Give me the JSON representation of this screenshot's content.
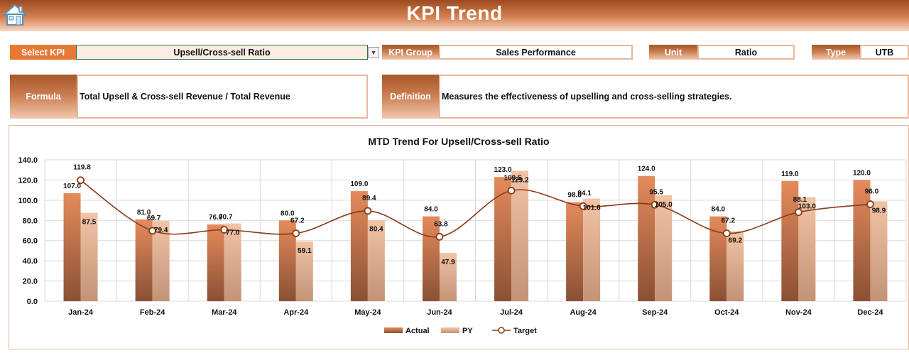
{
  "header": {
    "title": "KPI Trend",
    "home_icon": "home-icon"
  },
  "filters": {
    "select_kpi_label": "Select KPI",
    "select_kpi_value": "Upsell/Cross-sell Ratio",
    "kpi_group_label": "KPI Group",
    "kpi_group_value": "Sales Performance",
    "unit_label": "Unit",
    "unit_value": "Ratio",
    "type_label": "Type",
    "type_value": "UTB"
  },
  "info": {
    "formula_label": "Formula",
    "formula_value": "Total Upsell & Cross-sell Revenue / Total Revenue",
    "definition_label": "Definition",
    "definition_value": "Measures the effectiveness of upselling and cross-selling strategies."
  },
  "colors": {
    "actual_top": "#e48b5c",
    "actual_bottom": "#8a5035",
    "py_top": "#f3c3a5",
    "py_bottom": "#c39377",
    "target_line": "#8b3a14",
    "accent": "#e87934"
  },
  "chart_data": {
    "type": "bar",
    "title": "MTD Trend For Upsell/Cross-sell Ratio",
    "categories": [
      "Jan-24",
      "Feb-24",
      "Mar-24",
      "Apr-24",
      "May-24",
      "Jun-24",
      "Jul-24",
      "Aug-24",
      "Sep-24",
      "Oct-24",
      "Nov-24",
      "Dec-24"
    ],
    "series": [
      {
        "name": "Actual",
        "type": "bar",
        "values": [
          107.0,
          81.0,
          76.0,
          80.0,
          109.0,
          84.0,
          123.0,
          98.0,
          124.0,
          84.0,
          119.0,
          120.0
        ],
        "labels": [
          "107.0",
          "81.0",
          "76.0",
          "80.0",
          "109.0",
          "84.0",
          "123.0",
          "98.0",
          "124.0",
          "84.0",
          "119.0",
          "120.0"
        ]
      },
      {
        "name": "PY",
        "type": "bar",
        "values": [
          87.5,
          79.4,
          77.0,
          59.1,
          80.4,
          47.9,
          129.2,
          101.6,
          105.0,
          69.2,
          103.0,
          98.9
        ],
        "labels": [
          "87.5",
          "79.4",
          "77.0",
          "59.1",
          "80.4",
          "47.9",
          "129.2",
          "101.6",
          "105.0",
          "69.2",
          "103.0",
          "98.9"
        ]
      },
      {
        "name": "Target",
        "type": "line",
        "values": [
          119.8,
          69.7,
          70.7,
          67.2,
          89.4,
          63.8,
          109.5,
          94.1,
          95.5,
          67.2,
          88.1,
          96.0
        ],
        "labels": [
          "119.8",
          "69.7",
          "70.7",
          "67.2",
          "89.4",
          "63.8",
          "109.5",
          "94.1",
          "95.5",
          "67.2",
          "88.1",
          "96.0"
        ]
      }
    ],
    "ylim": [
      0,
      140
    ],
    "yticks": [
      "0.0",
      "20.0",
      "40.0",
      "60.0",
      "80.0",
      "100.0",
      "120.0",
      "140.0"
    ],
    "grid": true,
    "legend_position": "bottom"
  }
}
